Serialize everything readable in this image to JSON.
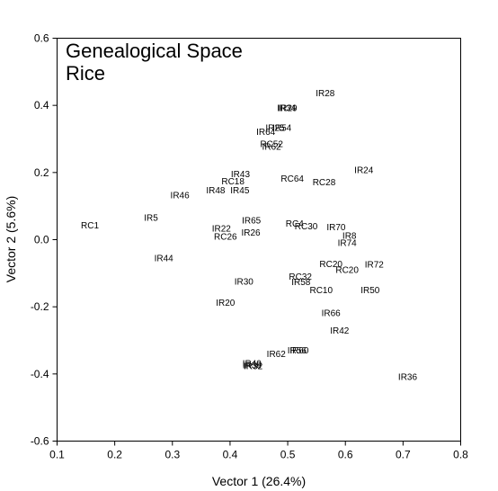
{
  "chart_data": {
    "type": "scatter",
    "title_lines": [
      "Genealogical Space",
      "Rice"
    ],
    "xlabel": "Vector 1 (26.4%)",
    "ylabel": "Vector 2 (5.6%)",
    "xlim": [
      0.1,
      0.8
    ],
    "ylim": [
      -0.6,
      0.6
    ],
    "x_ticks": [
      "0.1",
      "0.2",
      "0.3",
      "0.4",
      "0.5",
      "0.6",
      "0.7",
      "0.8"
    ],
    "y_ticks": [
      "0.6",
      "0.4",
      "0.2",
      "0.0",
      "-0.2",
      "-0.4",
      "-0.6"
    ],
    "grid": false,
    "marker": "text labels only",
    "points": [
      {
        "label": "IR28",
        "x": 0.565,
        "y": 0.437
      },
      {
        "label": "IR29",
        "x": 0.5,
        "y": 0.393
      },
      {
        "label": "IR34",
        "x": 0.498,
        "y": 0.393
      },
      {
        "label": "IR25",
        "x": 0.478,
        "y": 0.333
      },
      {
        "label": "IR54",
        "x": 0.49,
        "y": 0.333
      },
      {
        "label": "IR64",
        "x": 0.462,
        "y": 0.322
      },
      {
        "label": "RC52",
        "x": 0.472,
        "y": 0.285
      },
      {
        "label": "IR62",
        "x": 0.472,
        "y": 0.277
      },
      {
        "label": "IR24",
        "x": 0.632,
        "y": 0.207
      },
      {
        "label": "IR43",
        "x": 0.418,
        "y": 0.196
      },
      {
        "label": "RC64",
        "x": 0.508,
        "y": 0.182
      },
      {
        "label": "RC28",
        "x": 0.563,
        "y": 0.172
      },
      {
        "label": "RC18",
        "x": 0.405,
        "y": 0.174
      },
      {
        "label": "IR48",
        "x": 0.375,
        "y": 0.147
      },
      {
        "label": "IR45",
        "x": 0.417,
        "y": 0.147
      },
      {
        "label": "IR46",
        "x": 0.313,
        "y": 0.133
      },
      {
        "label": "RC1",
        "x": 0.157,
        "y": 0.043
      },
      {
        "label": "IR5",
        "x": 0.263,
        "y": 0.065
      },
      {
        "label": "IR65",
        "x": 0.437,
        "y": 0.057
      },
      {
        "label": "RC4",
        "x": 0.512,
        "y": 0.048
      },
      {
        "label": "RC30",
        "x": 0.532,
        "y": 0.04
      },
      {
        "label": "IR70",
        "x": 0.584,
        "y": 0.037
      },
      {
        "label": "IR22",
        "x": 0.385,
        "y": 0.034
      },
      {
        "label": "IR26",
        "x": 0.436,
        "y": 0.022
      },
      {
        "label": "RC26",
        "x": 0.392,
        "y": 0.01
      },
      {
        "label": "IR8",
        "x": 0.607,
        "y": 0.012
      },
      {
        "label": "IR74",
        "x": 0.603,
        "y": -0.01
      },
      {
        "label": "IR44",
        "x": 0.285,
        "y": -0.055
      },
      {
        "label": "RC20",
        "x": 0.575,
        "y": -0.072
      },
      {
        "label": "IR72",
        "x": 0.65,
        "y": -0.074
      },
      {
        "label": "RC20",
        "x": 0.603,
        "y": -0.09
      },
      {
        "label": "RC32",
        "x": 0.522,
        "y": -0.11
      },
      {
        "label": "IR30",
        "x": 0.424,
        "y": -0.125
      },
      {
        "label": "IR58",
        "x": 0.523,
        "y": -0.126
      },
      {
        "label": "RC10",
        "x": 0.558,
        "y": -0.15
      },
      {
        "label": "IR50",
        "x": 0.643,
        "y": -0.15
      },
      {
        "label": "IR20",
        "x": 0.392,
        "y": -0.187
      },
      {
        "label": "IR66",
        "x": 0.575,
        "y": -0.218
      },
      {
        "label": "IR42",
        "x": 0.59,
        "y": -0.27
      },
      {
        "label": "IR56",
        "x": 0.516,
        "y": -0.33
      },
      {
        "label": "IR60",
        "x": 0.52,
        "y": -0.33
      },
      {
        "label": "IR62",
        "x": 0.48,
        "y": -0.34
      },
      {
        "label": "IR40",
        "x": 0.438,
        "y": -0.368
      },
      {
        "label": "IR38",
        "x": 0.438,
        "y": -0.374
      },
      {
        "label": "IR32",
        "x": 0.44,
        "y": -0.376
      },
      {
        "label": "IR36",
        "x": 0.708,
        "y": -0.408
      }
    ]
  }
}
